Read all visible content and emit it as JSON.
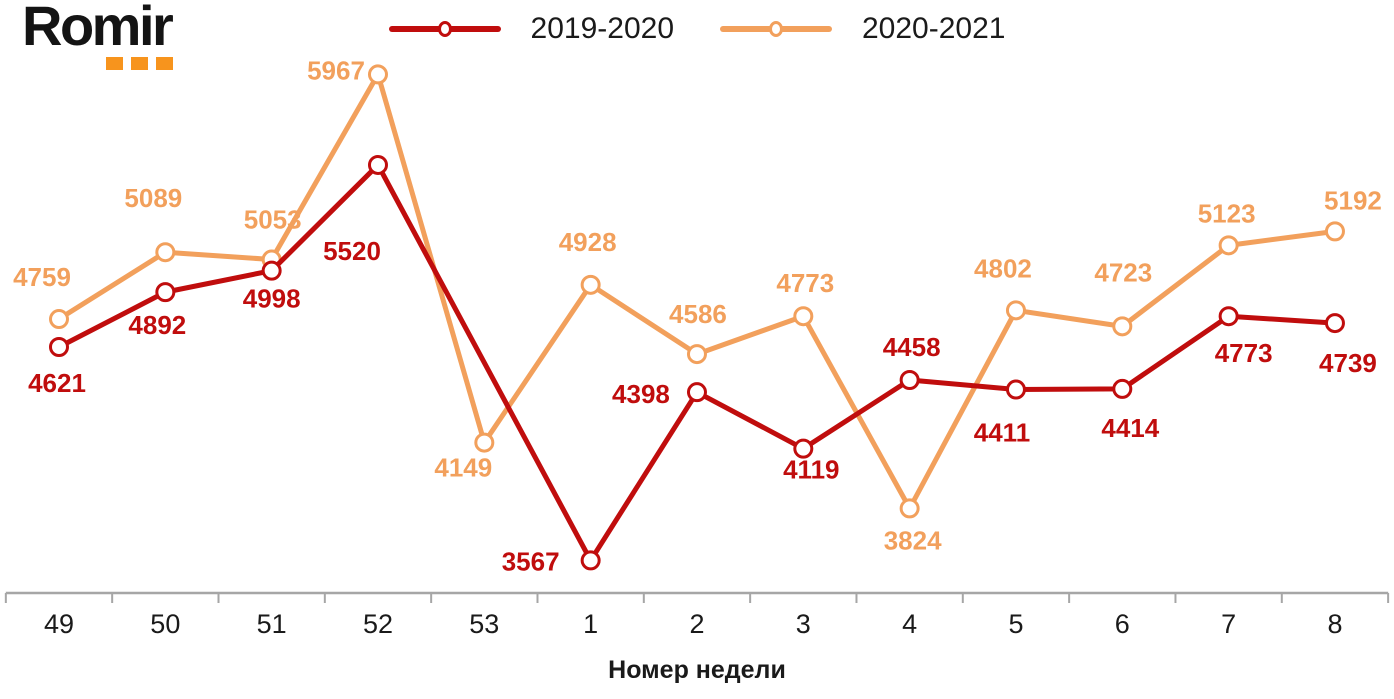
{
  "logo": {
    "text": "Romir",
    "text_color": "#141414",
    "dot_color": "#F7941D"
  },
  "chart_data": {
    "type": "line",
    "x_labels": [
      "49",
      "50",
      "51",
      "52",
      "53",
      "1",
      "2",
      "3",
      "4",
      "5",
      "6",
      "7",
      "8"
    ],
    "xlabel": "Номер недели",
    "title": "",
    "ylim": [
      3300,
      6200
    ],
    "grid": false,
    "legend_position": "top-center",
    "axis_color": "#A6A6A6",
    "tick_label_color": "#1a1a1a",
    "series": [
      {
        "name": "2019-2020",
        "color": "#C00D0D",
        "values": [
          4621,
          4892,
          4998,
          5520,
          null,
          3567,
          4398,
          4119,
          4458,
          4411,
          4414,
          4773,
          4739
        ],
        "label_offsets": [
          [
            -2,
            36
          ],
          [
            -8,
            33
          ],
          [
            0,
            28
          ],
          [
            -26,
            86
          ],
          [
            0,
            0
          ],
          [
            -60,
            1
          ],
          [
            -56,
            2
          ],
          [
            8,
            21
          ],
          [
            2,
            -33
          ],
          [
            -14,
            43
          ],
          [
            8,
            39
          ],
          [
            15,
            37
          ],
          [
            13,
            40
          ]
        ]
      },
      {
        "name": "2020-2021",
        "color": "#F2A05C",
        "values": [
          4759,
          5089,
          5053,
          5967,
          4149,
          4928,
          4586,
          4773,
          3824,
          4802,
          4723,
          5123,
          5192
        ],
        "label_offsets": [
          [
            -17,
            -42
          ],
          [
            -12,
            -54
          ],
          [
            1,
            -40
          ],
          [
            -42,
            -4
          ],
          [
            -21,
            25
          ],
          [
            -3,
            -43
          ],
          [
            1,
            -40
          ],
          [
            2,
            -33
          ],
          [
            3,
            32
          ],
          [
            -13,
            -42
          ],
          [
            1,
            -54
          ],
          [
            -2,
            -32
          ],
          [
            18,
            -31
          ]
        ]
      }
    ]
  }
}
